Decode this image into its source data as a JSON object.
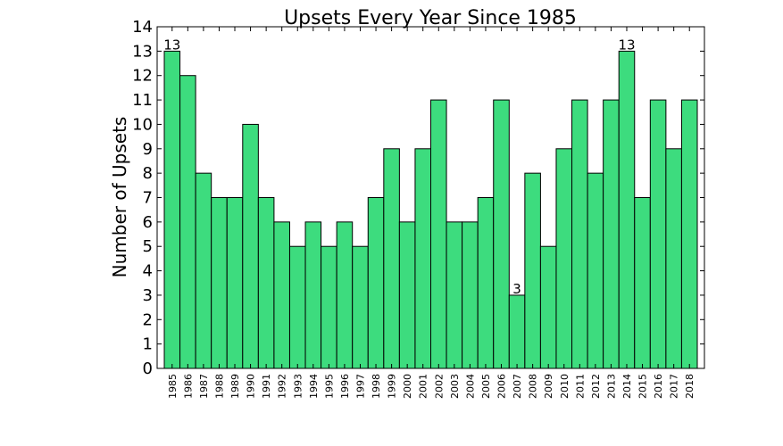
{
  "chart_data": {
    "type": "bar",
    "title": "Upsets Every Year Since 1985",
    "xlabel": "",
    "ylabel": "Number of Upsets",
    "categories": [
      "1985",
      "1986",
      "1987",
      "1988",
      "1989",
      "1990",
      "1991",
      "1992",
      "1993",
      "1994",
      "1995",
      "1996",
      "1997",
      "1998",
      "1999",
      "2000",
      "2001",
      "2002",
      "2003",
      "2004",
      "2005",
      "2006",
      "2007",
      "2008",
      "2009",
      "2010",
      "2011",
      "2012",
      "2013",
      "2014",
      "2015",
      "2016",
      "2017",
      "2018"
    ],
    "values": [
      13,
      12,
      8,
      7,
      7,
      10,
      7,
      6,
      5,
      6,
      5,
      6,
      5,
      7,
      9,
      6,
      9,
      11,
      6,
      6,
      7,
      11,
      3,
      8,
      5,
      9,
      11,
      8,
      11,
      13,
      7,
      11,
      9,
      11
    ],
    "ylim": [
      0,
      14
    ],
    "yticks": [
      "0",
      "1",
      "2",
      "3",
      "4",
      "5",
      "6",
      "7",
      "8",
      "9",
      "10",
      "11",
      "12",
      "13",
      "14"
    ],
    "annotations": [
      {
        "category": "1985",
        "text": "13"
      },
      {
        "category": "2007",
        "text": "3"
      },
      {
        "category": "2014",
        "text": "13"
      }
    ],
    "bar_color": "#3ddc7e",
    "edge_color": "#000000",
    "grid": false,
    "legend": "none"
  }
}
